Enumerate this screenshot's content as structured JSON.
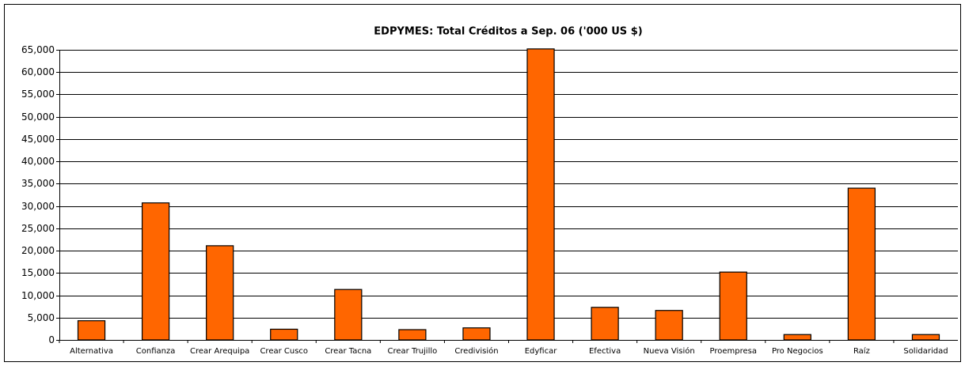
{
  "chart_data": {
    "type": "bar",
    "title": "EDPYMES: Total Créditos a Sep. 06 ('000 US $)",
    "categories": [
      "Alternativa",
      "Confianza",
      "Crear Arequipa",
      "Crear Cusco",
      "Crear Tacna",
      "Crear Trujillo",
      "Credivisión",
      "Edyficar",
      "Efectiva",
      "Nueva Visión",
      "Proempresa",
      "Pro Negocios",
      "Raíz",
      "Solidaridad"
    ],
    "values": [
      4300,
      30700,
      21100,
      2400,
      11300,
      2300,
      2700,
      65200,
      7300,
      6600,
      15200,
      1200,
      34000,
      1200
    ],
    "color": "#ff6600",
    "ylim": [
      0,
      65000
    ],
    "yticks": [
      0,
      {
        "value": 5000,
        "label": "5,000"
      },
      {
        "value": 10000,
        "label": "10,000"
      },
      {
        "value": 15000,
        "label": "15,000"
      },
      {
        "value": 20000,
        "label": "20,000"
      },
      {
        "value": 25000,
        "label": "25,000"
      },
      {
        "value": 30000,
        "label": "30,000"
      },
      {
        "value": 35000,
        "label": "35,000"
      },
      {
        "value": 40000,
        "label": "40,000"
      },
      {
        "value": 45000,
        "label": "45,000"
      },
      {
        "value": 50000,
        "label": "50,000"
      },
      {
        "value": 55000,
        "label": "55,000"
      },
      {
        "value": 60000,
        "label": "60,000"
      },
      {
        "value": 65000,
        "label": "65,000"
      }
    ],
    "grid": true
  }
}
